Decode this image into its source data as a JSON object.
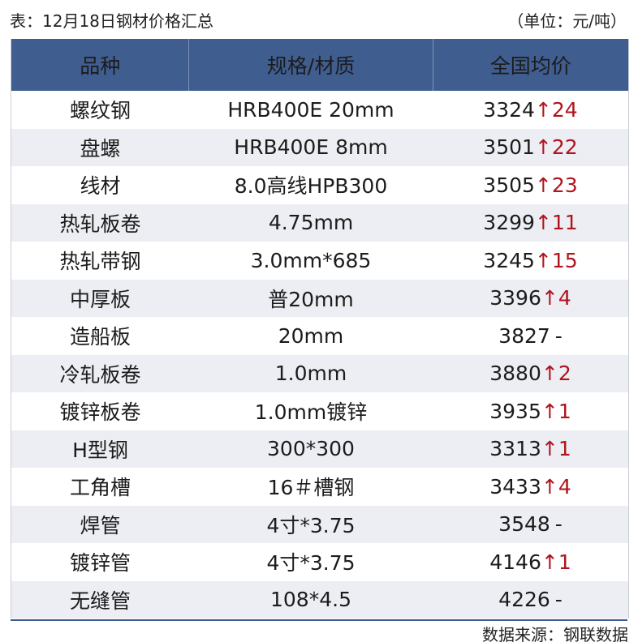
{
  "header": {
    "title": "表：12月18日钢材价格汇总",
    "unit": "（单位：元/吨）"
  },
  "table": {
    "columns": [
      "品种",
      "规格/材质",
      "全国均价"
    ],
    "rows": [
      [
        "螺纹钢",
        "HRB400E 20mm",
        "3324",
        "↑24"
      ],
      [
        "盘螺",
        "HRB400E 8mm",
        "3501",
        "↑22"
      ],
      [
        "线材",
        "8.0高线HPB300",
        "3505",
        "↑23"
      ],
      [
        "热轧板卷",
        "4.75mm",
        "3299",
        "↑11"
      ],
      [
        "热轧带钢",
        "3.0mm*685",
        "3245",
        "↑15"
      ],
      [
        "中厚板",
        "普20mm",
        "3396",
        "↑4"
      ],
      [
        "造船板",
        "20mm",
        "3827",
        "-"
      ],
      [
        "冷轧板卷",
        "1.0mm",
        "3880",
        "↑2"
      ],
      [
        "镀锌板卷",
        "1.0mm镀锌",
        "3935",
        "↑1"
      ],
      [
        "H型钢",
        "300*300",
        "3313",
        "↑1"
      ],
      [
        "工角槽",
        "16＃槽钢",
        "3433",
        "↑4"
      ],
      [
        "焊管",
        "4寸*3.75",
        "3548",
        "-"
      ],
      [
        "镀锌管",
        "4寸*3.75",
        "4146",
        "↑1"
      ],
      [
        "无缝管",
        "108*4.5",
        "4226",
        "-"
      ]
    ]
  },
  "footer": {
    "source": "数据来源：钢联数据"
  }
}
